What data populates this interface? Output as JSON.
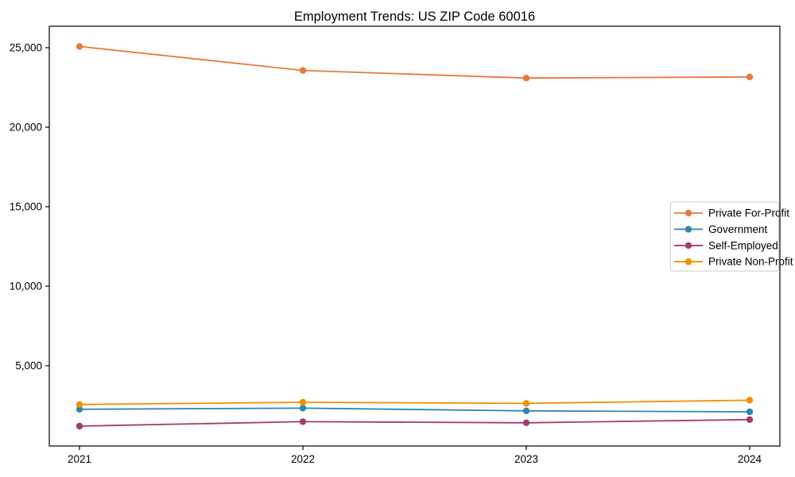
{
  "chart_data": {
    "type": "line",
    "title": "Employment Trends: US ZIP Code 60016",
    "xlabel": "",
    "ylabel": "",
    "categories": [
      "2021",
      "2022",
      "2023",
      "2024"
    ],
    "series": [
      {
        "name": "Private For-Profit",
        "color": "#E8793E",
        "values": [
          25080,
          23570,
          23090,
          23160
        ]
      },
      {
        "name": "Government",
        "color": "#2E86AB",
        "values": [
          2260,
          2330,
          2160,
          2100
        ]
      },
      {
        "name": "Self-Employed",
        "color": "#A23B72",
        "values": [
          1200,
          1480,
          1410,
          1610
        ]
      },
      {
        "name": "Private Non-Profit",
        "color": "#F18F01",
        "values": [
          2560,
          2700,
          2630,
          2830
        ]
      }
    ],
    "yticks": [
      5000,
      10000,
      15000,
      20000,
      25000
    ],
    "ytick_labels": [
      "5,000",
      "10,000",
      "15,000",
      "20,000",
      "25,000"
    ],
    "ylim": [
      -50,
      26350
    ],
    "grid": false,
    "legend_position": "center right",
    "marker": "circle",
    "frame_color": "#000000",
    "background_color": "#ffffff",
    "legend_border_color": "#cccccc"
  }
}
